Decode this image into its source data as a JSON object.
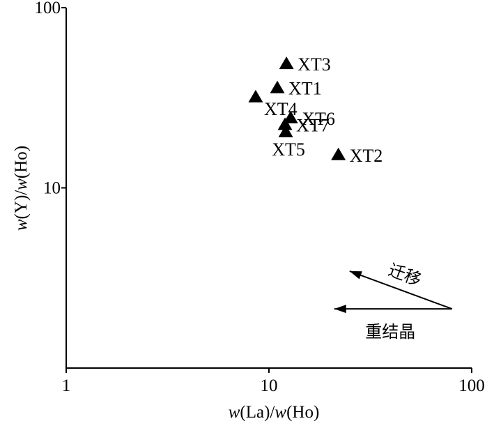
{
  "chart_data": {
    "type": "scatter",
    "xscale": "log",
    "yscale": "log",
    "xlim": [
      1,
      100
    ],
    "ylim": [
      1,
      100
    ],
    "x_ticks": [
      {
        "value": 1,
        "label": "1"
      },
      {
        "value": 10,
        "label": "10"
      },
      {
        "value": 100,
        "label": "100"
      }
    ],
    "y_ticks": [
      {
        "value": 10,
        "label": "10"
      },
      {
        "value": 100,
        "label": "100"
      }
    ],
    "xlabel_parts": [
      {
        "text": "w",
        "italic": true
      },
      {
        "text": "(La)/",
        "italic": false
      },
      {
        "text": "w",
        "italic": true
      },
      {
        "text": "(Ho)",
        "italic": false
      }
    ],
    "ylabel_parts": [
      {
        "text": "w",
        "italic": true
      },
      {
        "text": "(Y)/",
        "italic": false
      },
      {
        "text": "w",
        "italic": true
      },
      {
        "text": "(Ho)",
        "italic": false
      }
    ],
    "marker": "filled-triangle",
    "marker_color": "#000000",
    "grid": false,
    "points": [
      {
        "label": "XT3",
        "x": 12.2,
        "y": 49,
        "label_pos": "right"
      },
      {
        "label": "XT1",
        "x": 11.0,
        "y": 36,
        "label_pos": "right"
      },
      {
        "label": "XT4",
        "x": 8.6,
        "y": 32,
        "label_pos": "below-right"
      },
      {
        "label": "XT6",
        "x": 12.8,
        "y": 24.5,
        "label_pos": "right"
      },
      {
        "label": "XT7",
        "x": 12.0,
        "y": 22.5,
        "label_pos": "right"
      },
      {
        "label": "XT5",
        "x": 12.1,
        "y": 20.5,
        "label_pos": "below-left"
      },
      {
        "label": "XT2",
        "x": 22.0,
        "y": 15.3,
        "label_pos": "right"
      }
    ],
    "annotations": [
      {
        "label": "迁移",
        "from": {
          "x": 80,
          "y": 2.13
        },
        "to": {
          "x": 25,
          "y": 3.45
        },
        "label_pos": "above"
      },
      {
        "label": "重结晶",
        "from": {
          "x": 80,
          "y": 2.13
        },
        "to": {
          "x": 21,
          "y": 2.13
        },
        "label_pos": "below"
      }
    ]
  }
}
